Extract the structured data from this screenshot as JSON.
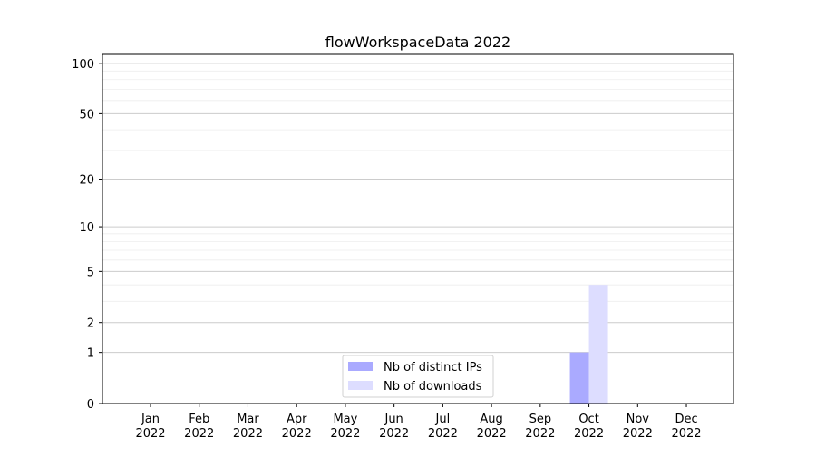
{
  "chart_data": {
    "type": "bar",
    "title": "flowWorkspaceData 2022",
    "xlabel": "",
    "ylabel": "",
    "yscale": "log(1+y)",
    "ylim": [
      0,
      113
    ],
    "yticks": [
      0,
      1,
      2,
      5,
      10,
      20,
      50,
      100
    ],
    "yminor_grid": [
      3,
      4,
      6,
      7,
      8,
      9,
      30,
      40,
      60,
      70,
      80,
      90
    ],
    "grid": true,
    "categories": [
      "Jan\n2022",
      "Feb\n2022",
      "Mar\n2022",
      "Apr\n2022",
      "May\n2022",
      "Jun\n2022",
      "Jul\n2022",
      "Aug\n2022",
      "Sep\n2022",
      "Oct\n2022",
      "Nov\n2022",
      "Dec\n2022"
    ],
    "series": [
      {
        "name": "Nb of distinct IPs",
        "color": "#aaaaff",
        "values": [
          0,
          0,
          0,
          0,
          0,
          0,
          0,
          0,
          0,
          1,
          0,
          0
        ]
      },
      {
        "name": "Nb of downloads",
        "color": "#ddddff",
        "values": [
          0,
          0,
          0,
          0,
          0,
          0,
          0,
          0,
          0,
          4,
          0,
          0
        ]
      }
    ],
    "legend_position": "lower-center"
  }
}
